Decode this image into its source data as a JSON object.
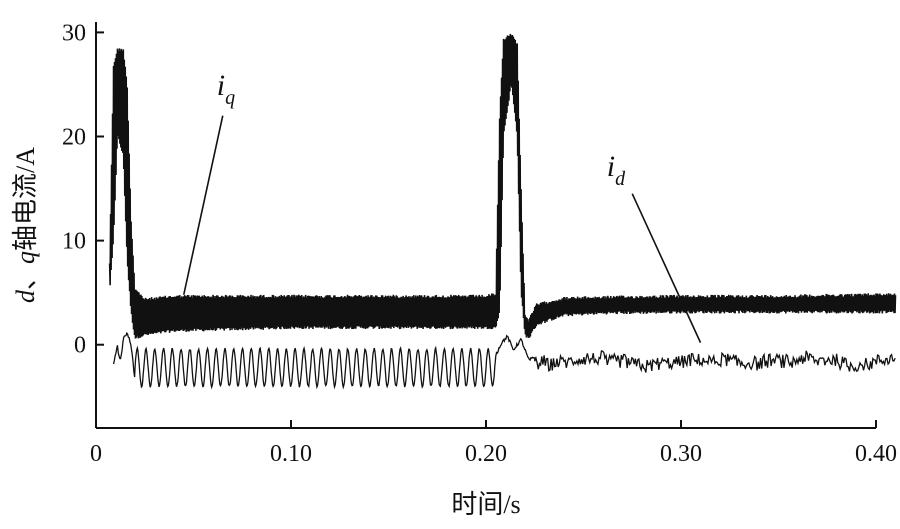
{
  "chart_data": {
    "type": "line",
    "title": "",
    "xlabel": "时间/s",
    "ylabel_parts": {
      "d": "d",
      "sep": "、",
      "q": "q",
      "rest": "轴电流/A"
    },
    "xlim": [
      0,
      0.41
    ],
    "ylim": [
      -8,
      31
    ],
    "xticks": [
      {
        "value": 0,
        "label": "0"
      },
      {
        "value": 0.1,
        "label": "0.10"
      },
      {
        "value": 0.2,
        "label": "0.20"
      },
      {
        "value": 0.3,
        "label": "0.30"
      },
      {
        "value": 0.4,
        "label": "0.40"
      }
    ],
    "yticks": [
      {
        "value": 0,
        "label": "0"
      },
      {
        "value": 10,
        "label": "10"
      },
      {
        "value": 20,
        "label": "20"
      },
      {
        "value": 30,
        "label": "30"
      }
    ],
    "grid": false,
    "series": [
      {
        "name": "iq",
        "envelope_upper": [
          [
            0.007,
            8
          ],
          [
            0.009,
            27
          ],
          [
            0.011,
            28.5
          ],
          [
            0.014,
            28.5
          ],
          [
            0.016,
            25
          ],
          [
            0.018,
            12
          ],
          [
            0.02,
            5.5
          ],
          [
            0.025,
            4.5
          ],
          [
            0.04,
            4.8
          ],
          [
            0.1,
            4.8
          ],
          [
            0.15,
            4.8
          ],
          [
            0.2,
            4.8
          ],
          [
            0.205,
            5
          ],
          [
            0.207,
            22
          ],
          [
            0.209,
            29.5
          ],
          [
            0.213,
            30
          ],
          [
            0.216,
            29
          ],
          [
            0.218,
            15
          ],
          [
            0.22,
            3
          ],
          [
            0.222,
            2.5
          ],
          [
            0.226,
            4
          ],
          [
            0.24,
            4.6
          ],
          [
            0.26,
            4.7
          ],
          [
            0.3,
            4.8
          ],
          [
            0.35,
            4.8
          ],
          [
            0.41,
            5.0
          ]
        ],
        "envelope_lower": [
          [
            0.007,
            5
          ],
          [
            0.009,
            10
          ],
          [
            0.011,
            20
          ],
          [
            0.014,
            18
          ],
          [
            0.016,
            8
          ],
          [
            0.018,
            3
          ],
          [
            0.02,
            0.5
          ],
          [
            0.025,
            0.8
          ],
          [
            0.04,
            1.2
          ],
          [
            0.1,
            1.5
          ],
          [
            0.15,
            1.5
          ],
          [
            0.2,
            1.5
          ],
          [
            0.205,
            1.5
          ],
          [
            0.207,
            3
          ],
          [
            0.209,
            20
          ],
          [
            0.213,
            25
          ],
          [
            0.216,
            20
          ],
          [
            0.218,
            5
          ],
          [
            0.22,
            0.8
          ],
          [
            0.222,
            0.5
          ],
          [
            0.226,
            1.8
          ],
          [
            0.24,
            2.7
          ],
          [
            0.26,
            2.9
          ],
          [
            0.3,
            3.0
          ],
          [
            0.35,
            3.0
          ],
          [
            0.41,
            3.0
          ]
        ]
      },
      {
        "name": "id",
        "segments": [
          {
            "t0": 0.009,
            "t1": 0.02,
            "shape": [
              [
                0.009,
                -2
              ],
              [
                0.011,
                0
              ],
              [
                0.012,
                -1.5
              ],
              [
                0.013,
                -1
              ],
              [
                0.014,
                0.5
              ],
              [
                0.016,
                1.2
              ],
              [
                0.018,
                0
              ],
              [
                0.02,
                -3.5
              ]
            ]
          },
          {
            "t0": 0.02,
            "t1": 0.205,
            "baseline": -2.2,
            "amplitude": 1.8,
            "period": 0.0045
          },
          {
            "t0": 0.205,
            "t1": 0.225,
            "shape": [
              [
                0.205,
                -1
              ],
              [
                0.208,
                0.2
              ],
              [
                0.211,
                0.8
              ],
              [
                0.214,
                -0.5
              ],
              [
                0.218,
                0.5
              ],
              [
                0.222,
                -1.5
              ],
              [
                0.225,
                -1.2
              ]
            ]
          },
          {
            "t0": 0.225,
            "t1": 0.41,
            "baseline": -1.7,
            "amplitude": 1.2,
            "noise": true
          }
        ]
      }
    ],
    "annotations": [
      {
        "main": "i",
        "sub": "q",
        "label_at": [
          0.065,
          24
        ],
        "line_from": [
          0.065,
          22
        ],
        "line_to": [
          0.045,
          4.8
        ]
      },
      {
        "main": "i",
        "sub": "d",
        "label_at": [
          0.265,
          16.2
        ],
        "line_from": [
          0.275,
          14.5
        ],
        "line_to": [
          0.31,
          0.2
        ]
      }
    ]
  }
}
